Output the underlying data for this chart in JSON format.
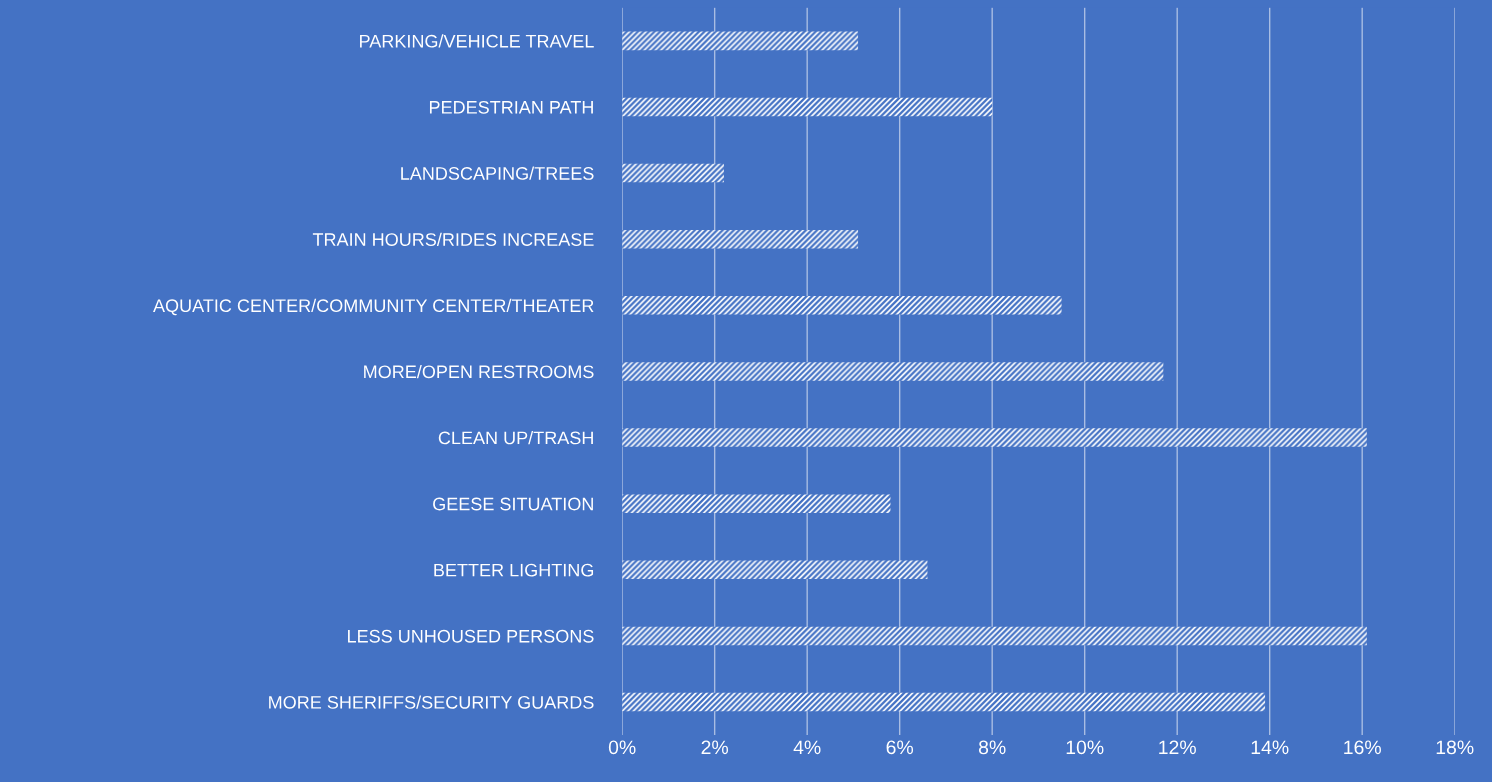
{
  "chart_data": {
    "type": "bar",
    "orientation": "horizontal",
    "categories": [
      "PARKING/VEHICLE TRAVEL",
      "PEDESTRIAN PATH",
      "LANDSCAPING/TREES",
      "TRAIN HOURS/RIDES INCREASE",
      "AQUATIC CENTER/COMMUNITY CENTER/THEATER",
      "MORE/OPEN RESTROOMS",
      "CLEAN UP/TRASH",
      "GEESE SITUATION",
      "BETTER LIGHTING",
      "LESS UNHOUSED PERSONS",
      "MORE SHERIFFS/SECURITY GUARDS"
    ],
    "values": [
      5.1,
      8.0,
      2.2,
      5.1,
      9.5,
      11.7,
      16.1,
      5.8,
      6.6,
      16.1,
      13.9
    ],
    "color": "#ffffff",
    "xlim": [
      0,
      18
    ],
    "xticks": [
      {
        "value": 0,
        "label": "0%"
      },
      {
        "value": 2,
        "label": "2%"
      },
      {
        "value": 4,
        "label": "4%"
      },
      {
        "value": 6,
        "label": "6%"
      },
      {
        "value": 8,
        "label": "8%"
      },
      {
        "value": 10,
        "label": "10%"
      },
      {
        "value": 12,
        "label": "12%"
      },
      {
        "value": 14,
        "label": "14%"
      },
      {
        "value": 16,
        "label": "16%"
      },
      {
        "value": 18,
        "label": "18%"
      }
    ],
    "grid": "x",
    "legend": false
  }
}
